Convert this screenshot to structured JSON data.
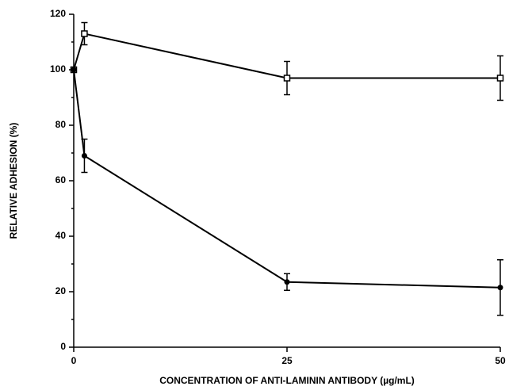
{
  "chart_data": {
    "type": "line",
    "xlabel": "CONCENTRATION OF ANTI-LAMININ ANTIBODY (µg/mL)",
    "ylabel": "RELATIVE ADHESION (%)",
    "xlim": [
      0,
      50
    ],
    "xticks": [
      0,
      25,
      50
    ],
    "ylim": [
      0,
      120
    ],
    "yticks": [
      0,
      20,
      40,
      60,
      80,
      100,
      120
    ],
    "yminor_ticks": [
      10,
      30,
      50,
      70,
      90,
      110
    ],
    "series": [
      {
        "color": "#000000",
        "marker": "open-square",
        "x": [
          0,
          1.25,
          25,
          50
        ],
        "values": [
          100,
          113,
          97,
          97
        ],
        "errors": [
          0,
          4,
          6,
          8
        ]
      },
      {
        "color": "#000000",
        "marker": "filled-circle",
        "x": [
          0,
          1.25,
          25,
          50
        ],
        "values": [
          100,
          69,
          23.5,
          21.5
        ],
        "errors": [
          0,
          6,
          3,
          10
        ]
      }
    ]
  }
}
